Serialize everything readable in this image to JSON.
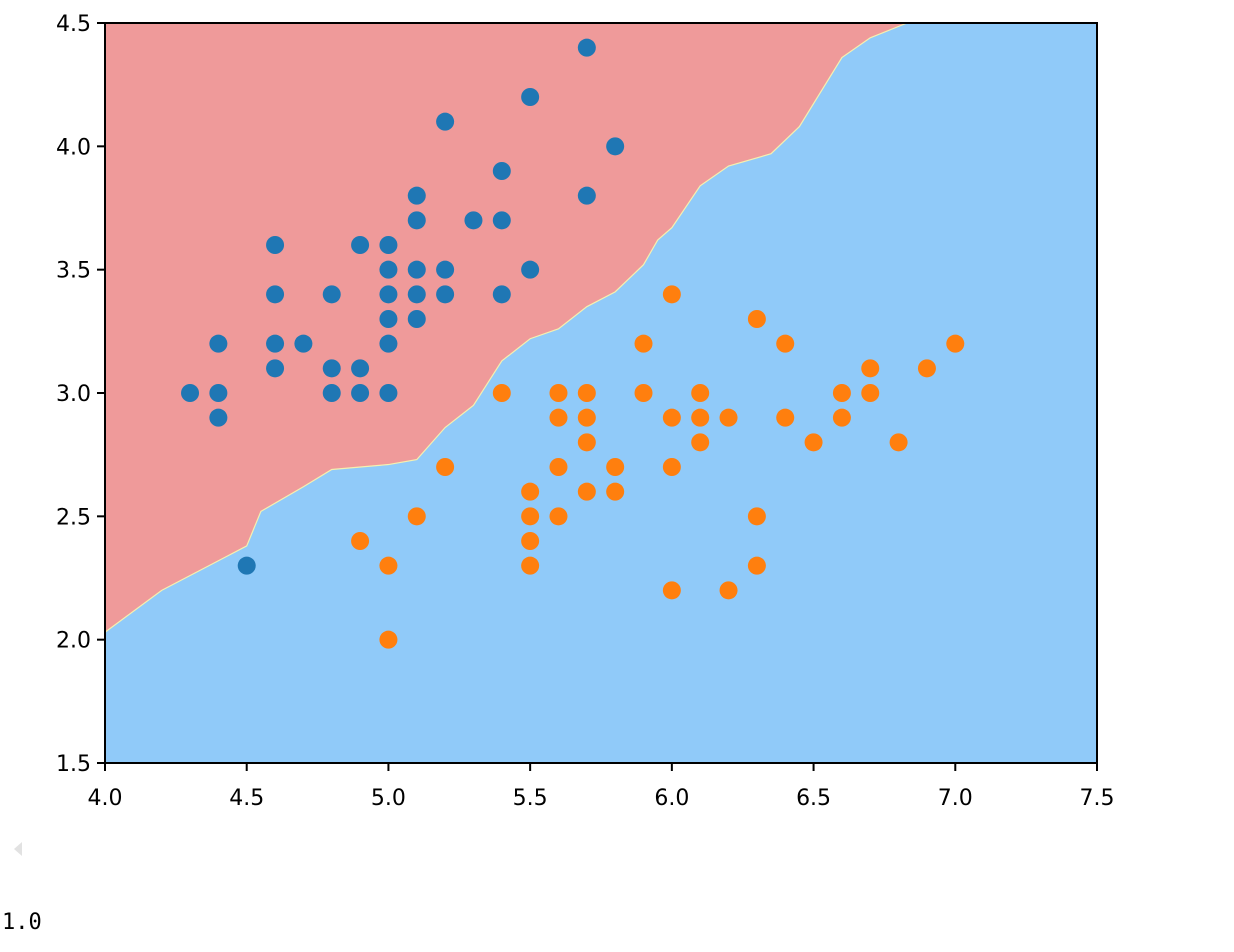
{
  "chart_data": {
    "type": "scatter",
    "title": "",
    "xlabel": "",
    "ylabel": "",
    "xlim": [
      4.0,
      7.5
    ],
    "ylim": [
      1.5,
      4.5
    ],
    "x_ticks": [
      "4.0",
      "4.5",
      "5.0",
      "5.5",
      "6.0",
      "6.5",
      "7.0",
      "7.5"
    ],
    "y_ticks": [
      "1.5",
      "2.0",
      "2.5",
      "3.0",
      "3.5",
      "4.0",
      "4.5"
    ],
    "grid": false,
    "decision_regions": [
      {
        "class": 0,
        "color": "#ef9a9a"
      },
      {
        "class": 1,
        "color": "#90caf9"
      }
    ],
    "decision_boundary": [
      [
        4.0,
        2.03
      ],
      [
        4.2,
        2.2
      ],
      [
        4.4,
        2.32
      ],
      [
        4.5,
        2.38
      ],
      [
        4.55,
        2.52
      ],
      [
        4.7,
        2.62
      ],
      [
        4.8,
        2.69
      ],
      [
        5.0,
        2.71
      ],
      [
        5.1,
        2.73
      ],
      [
        5.2,
        2.86
      ],
      [
        5.3,
        2.95
      ],
      [
        5.4,
        3.13
      ],
      [
        5.5,
        3.22
      ],
      [
        5.6,
        3.26
      ],
      [
        5.7,
        3.35
      ],
      [
        5.8,
        3.41
      ],
      [
        5.9,
        3.52
      ],
      [
        5.95,
        3.62
      ],
      [
        6.0,
        3.67
      ],
      [
        6.1,
        3.84
      ],
      [
        6.2,
        3.92
      ],
      [
        6.35,
        3.97
      ],
      [
        6.45,
        4.08
      ],
      [
        6.6,
        4.36
      ],
      [
        6.7,
        4.44
      ],
      [
        6.83,
        4.5
      ]
    ],
    "series": [
      {
        "color": "#1f77b4",
        "points": [
          [
            4.3,
            3.0
          ],
          [
            4.4,
            3.2
          ],
          [
            4.4,
            3.0
          ],
          [
            4.4,
            2.9
          ],
          [
            4.5,
            2.3
          ],
          [
            4.6,
            3.6
          ],
          [
            4.6,
            3.4
          ],
          [
            4.6,
            3.2
          ],
          [
            4.6,
            3.1
          ],
          [
            4.7,
            3.2
          ],
          [
            4.8,
            3.4
          ],
          [
            4.8,
            3.1
          ],
          [
            4.8,
            3.0
          ],
          [
            4.9,
            3.6
          ],
          [
            4.9,
            3.1
          ],
          [
            4.9,
            3.0
          ],
          [
            5.0,
            3.6
          ],
          [
            5.0,
            3.5
          ],
          [
            5.0,
            3.4
          ],
          [
            5.0,
            3.3
          ],
          [
            5.0,
            3.2
          ],
          [
            5.0,
            3.0
          ],
          [
            5.1,
            3.8
          ],
          [
            5.1,
            3.7
          ],
          [
            5.1,
            3.5
          ],
          [
            5.1,
            3.4
          ],
          [
            5.1,
            3.3
          ],
          [
            5.2,
            4.1
          ],
          [
            5.2,
            3.5
          ],
          [
            5.2,
            3.4
          ],
          [
            5.3,
            3.7
          ],
          [
            5.4,
            3.9
          ],
          [
            5.4,
            3.7
          ],
          [
            5.4,
            3.4
          ],
          [
            5.5,
            4.2
          ],
          [
            5.5,
            3.5
          ],
          [
            5.7,
            4.4
          ],
          [
            5.7,
            3.8
          ],
          [
            5.8,
            4.0
          ]
        ]
      },
      {
        "color": "#ff7f0e",
        "points": [
          [
            4.9,
            2.4
          ],
          [
            5.0,
            2.3
          ],
          [
            5.0,
            2.0
          ],
          [
            5.1,
            2.5
          ],
          [
            5.2,
            2.7
          ],
          [
            5.4,
            3.0
          ],
          [
            5.5,
            2.6
          ],
          [
            5.5,
            2.5
          ],
          [
            5.5,
            2.4
          ],
          [
            5.5,
            2.3
          ],
          [
            5.6,
            3.0
          ],
          [
            5.6,
            2.9
          ],
          [
            5.6,
            2.7
          ],
          [
            5.6,
            2.5
          ],
          [
            5.7,
            3.0
          ],
          [
            5.7,
            2.9
          ],
          [
            5.7,
            2.8
          ],
          [
            5.7,
            2.6
          ],
          [
            5.8,
            2.7
          ],
          [
            5.8,
            2.6
          ],
          [
            5.9,
            3.2
          ],
          [
            5.9,
            3.0
          ],
          [
            6.0,
            3.4
          ],
          [
            6.0,
            2.9
          ],
          [
            6.0,
            2.7
          ],
          [
            6.0,
            2.2
          ],
          [
            6.1,
            3.0
          ],
          [
            6.1,
            2.9
          ],
          [
            6.1,
            2.8
          ],
          [
            6.2,
            2.9
          ],
          [
            6.2,
            2.2
          ],
          [
            6.3,
            3.3
          ],
          [
            6.3,
            2.5
          ],
          [
            6.3,
            2.3
          ],
          [
            6.4,
            3.2
          ],
          [
            6.4,
            2.9
          ],
          [
            6.5,
            2.8
          ],
          [
            6.6,
            3.0
          ],
          [
            6.6,
            2.9
          ],
          [
            6.7,
            3.1
          ],
          [
            6.7,
            3.0
          ],
          [
            6.8,
            2.8
          ],
          [
            6.9,
            3.1
          ],
          [
            7.0,
            3.2
          ]
        ]
      }
    ]
  },
  "output": {
    "value": "1.0"
  }
}
